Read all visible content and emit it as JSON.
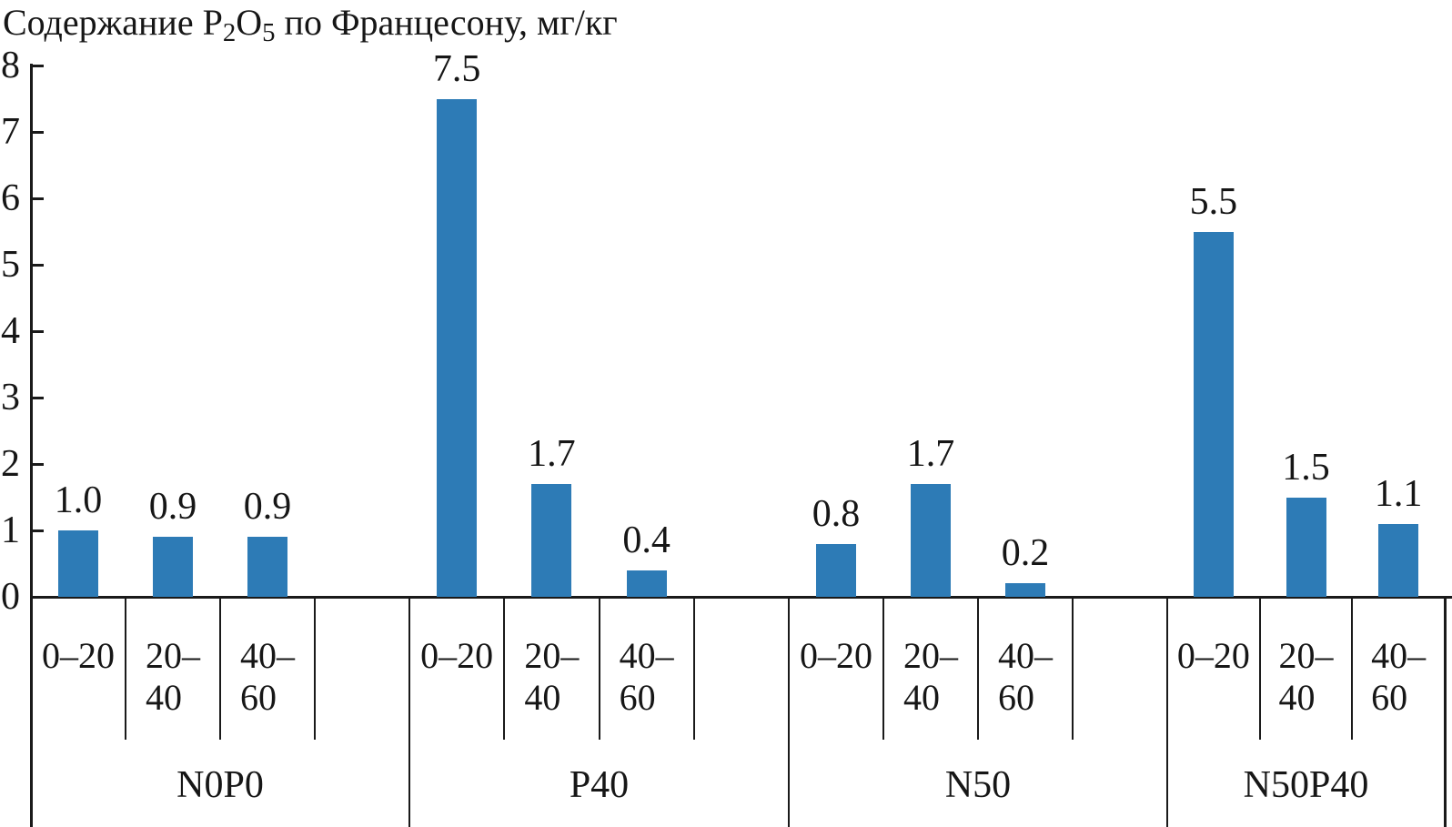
{
  "title_parts": [
    {
      "text": "Содержание P"
    },
    {
      "text": "2",
      "sub": true
    },
    {
      "text": "O"
    },
    {
      "text": "5",
      "sub": true
    },
    {
      "text": " по Францесону, мг/кг"
    }
  ],
  "chart_data": {
    "type": "bar",
    "title": "Содержание P2O5 по Францесону, мг/кг",
    "xlabel": "",
    "ylabel": "Содержание P2O5 по Францесону, мг/кг",
    "ylim": [
      0,
      8
    ],
    "yticks": [
      0,
      1,
      2,
      3,
      4,
      5,
      6,
      7,
      8
    ],
    "grid": false,
    "legend": null,
    "bar_color": "#2d7bb6",
    "line_color": "#1a1a1a",
    "groups": [
      {
        "label": "N0P0",
        "categories": [
          "0–20",
          "20–40",
          "40–60"
        ],
        "values": [
          1.0,
          0.9,
          0.9
        ]
      },
      {
        "label": "P40",
        "categories": [
          "0–20",
          "20–40",
          "40–60"
        ],
        "values": [
          7.5,
          1.7,
          0.4
        ]
      },
      {
        "label": "N50",
        "categories": [
          "0–20",
          "20–40",
          "40–60"
        ],
        "values": [
          0.8,
          1.7,
          0.2
        ]
      },
      {
        "label": "N50P40",
        "categories": [
          "0–20",
          "20–40",
          "40–60"
        ],
        "values": [
          5.5,
          1.5,
          1.1
        ]
      }
    ],
    "value_labels": [
      [
        "1.0",
        "0.9",
        "0.9"
      ],
      [
        "7.5",
        "1.7",
        "0.4"
      ],
      [
        "0.8",
        "1.7",
        "0.2"
      ],
      [
        "5.5",
        "1.5",
        "1.1"
      ]
    ],
    "category_display_lines": [
      [
        "0–20"
      ],
      [
        "20–",
        "40"
      ],
      [
        "40–",
        "60"
      ]
    ]
  }
}
